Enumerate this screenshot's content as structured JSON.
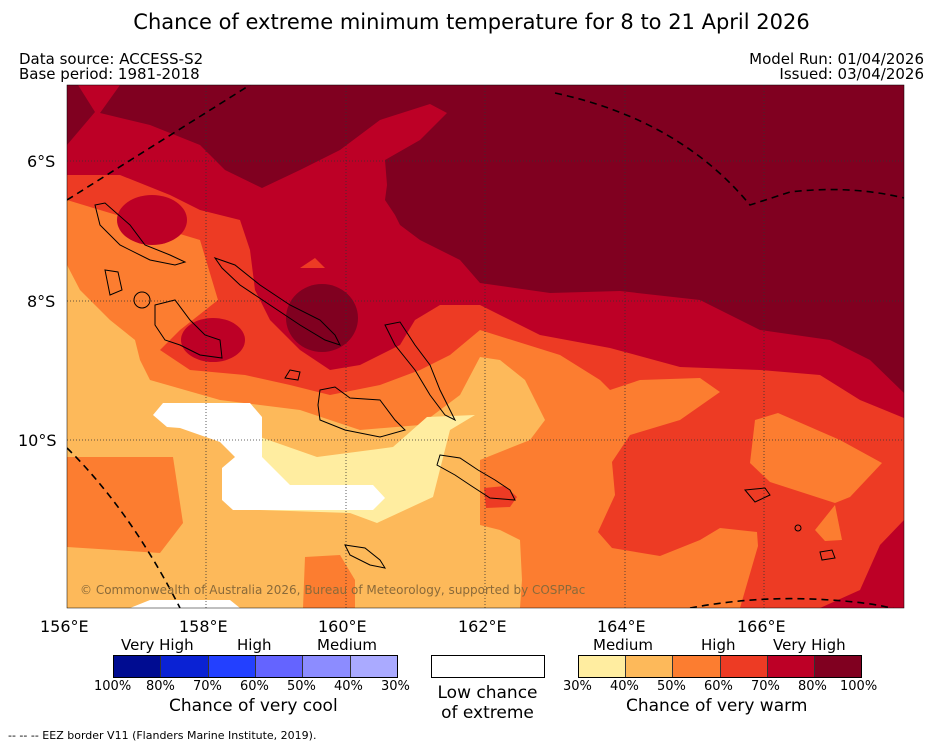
{
  "title": "Chance of extreme minimum temperature for 8 to 21 April 2026",
  "data_source": "Data source: ACCESS-S2",
  "base_period": "Base period: 1981-2018",
  "model_run": "Model Run: 01/04/2026",
  "issued": "Issued: 03/04/2026",
  "copyright": "© Commonwealth of Australia 2026, Bureau of Meteorology, supported by COSPPac",
  "lat_ticks": [
    "6°S",
    "8°S",
    "10°S"
  ],
  "lon_ticks": [
    "156°E",
    "158°E",
    "160°E",
    "162°E",
    "164°E",
    "166°E"
  ],
  "cool": {
    "levels": [
      "Very High",
      "High",
      "Medium"
    ],
    "ticks": [
      "100%",
      "80%",
      "70%",
      "60%",
      "50%",
      "40%",
      "30%"
    ],
    "colors": [
      "#000c91",
      "#0a22d4",
      "#2340ff",
      "#6464ff",
      "#8c8cff",
      "#aaaaff"
    ],
    "label": "Chance of very cool"
  },
  "neutral": {
    "label1": "Low chance",
    "label2": "of extreme",
    "color": "#ffffff"
  },
  "warm": {
    "levels": [
      "Medium",
      "High",
      "Very High"
    ],
    "ticks": [
      "30%",
      "40%",
      "50%",
      "60%",
      "70%",
      "80%",
      "100%"
    ],
    "colors": [
      "#ffeda0",
      "#fdb95a",
      "#fc7d30",
      "#ed3b24",
      "#bd0026",
      "#800020"
    ],
    "label": "Chance of very warm"
  },
  "footnote": "--  --  -- EEZ border V11 (Flanders Marine Institute, 2019)."
}
